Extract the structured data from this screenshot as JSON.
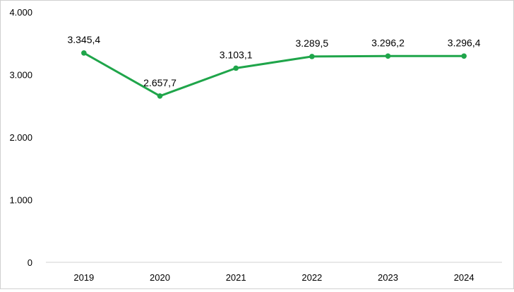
{
  "chart_data": {
    "type": "line",
    "title": "",
    "xlabel": "",
    "ylabel": "",
    "categories": [
      "2019",
      "2020",
      "2021",
      "2022",
      "2023",
      "2024"
    ],
    "series": [
      {
        "values": [
          3345.4,
          2657.7,
          3103.1,
          3289.5,
          3296.2,
          3296.4
        ],
        "data_labels": [
          "3.345,4",
          "2.657,7",
          "3.103,1",
          "3.289,5",
          "3.296,2",
          "3.296,4"
        ],
        "color": "#1fa54a"
      }
    ],
    "ylim": [
      0,
      4000
    ],
    "yticks": [
      0,
      1000,
      2000,
      3000,
      4000
    ],
    "ytick_labels": [
      "0",
      "1.000",
      "2.000",
      "3.000",
      "4.000"
    ],
    "grid": false,
    "legend": "none"
  }
}
